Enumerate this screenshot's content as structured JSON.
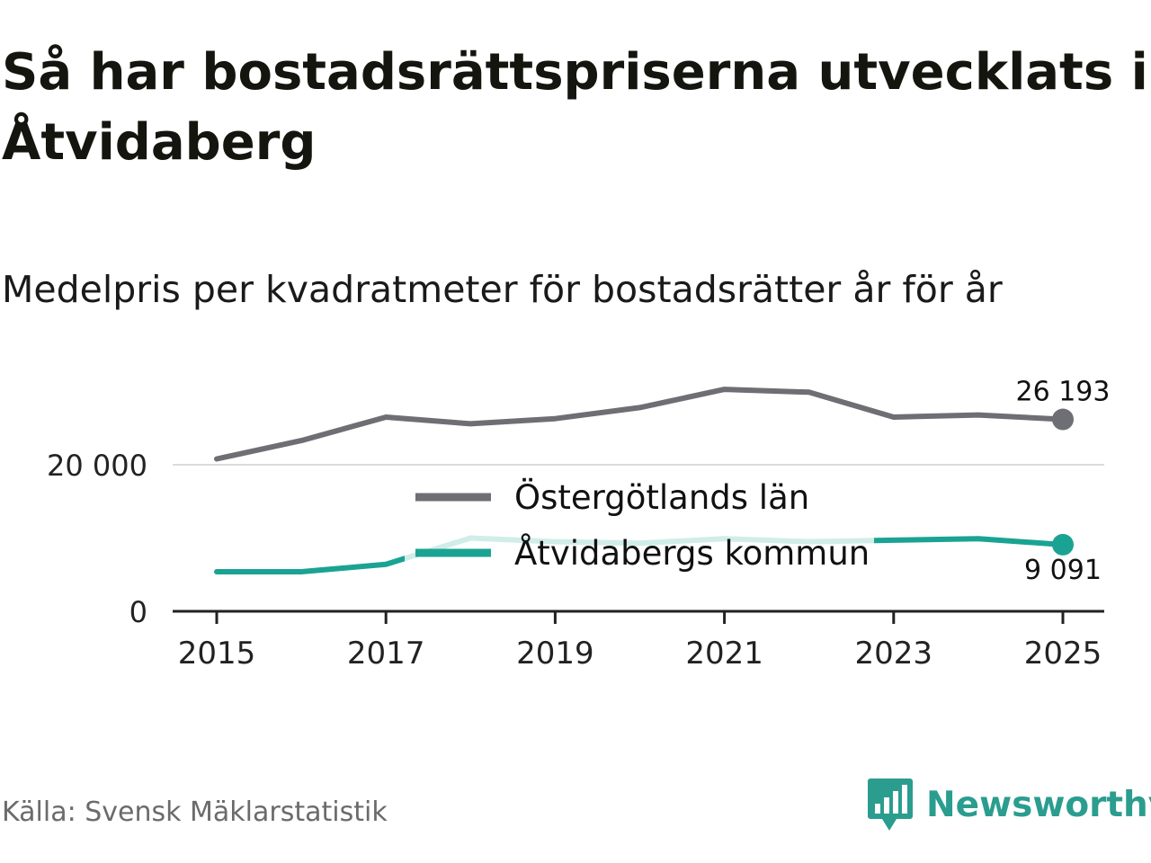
{
  "title": "Så har bostadsrättspriserna utvecklats i Åtvidaberg",
  "subtitle": "Medelpris per kvadratmeter för bostadsrätter år för år",
  "source": "Källa: Svensk Mäklarstatistik",
  "brand": {
    "name": "Newsworthy",
    "logo_icon": "bar-chart-speech-bubble-icon",
    "color": "#2a9d8f"
  },
  "chart_data": {
    "type": "line",
    "x": [
      2015,
      2016,
      2017,
      2018,
      2019,
      2020,
      2021,
      2022,
      2023,
      2024,
      2025
    ],
    "ylim": [
      0,
      30000
    ],
    "yticks": [
      0,
      20000
    ],
    "ytick_labels": [
      "0",
      "20 000"
    ],
    "xticks": [
      2015,
      2017,
      2019,
      2021,
      2023,
      2025
    ],
    "xtick_labels": [
      "2015",
      "2017",
      "2019",
      "2021",
      "2023",
      "2025"
    ],
    "grid": true,
    "legend_position": "center",
    "series": [
      {
        "name": "Östergötlands län",
        "color": "#6e6e75",
        "values": [
          20800,
          23300,
          26500,
          25600,
          26300,
          27800,
          30300,
          29900,
          26500,
          26800,
          26193
        ],
        "end_label": "26 193"
      },
      {
        "name": "Åtvidabergs kommun",
        "color": "#1aa392",
        "values": [
          5400,
          5400,
          6400,
          10000,
          9500,
          9300,
          9900,
          9500,
          9700,
          9900,
          9091
        ],
        "end_label": "9 091"
      }
    ]
  }
}
